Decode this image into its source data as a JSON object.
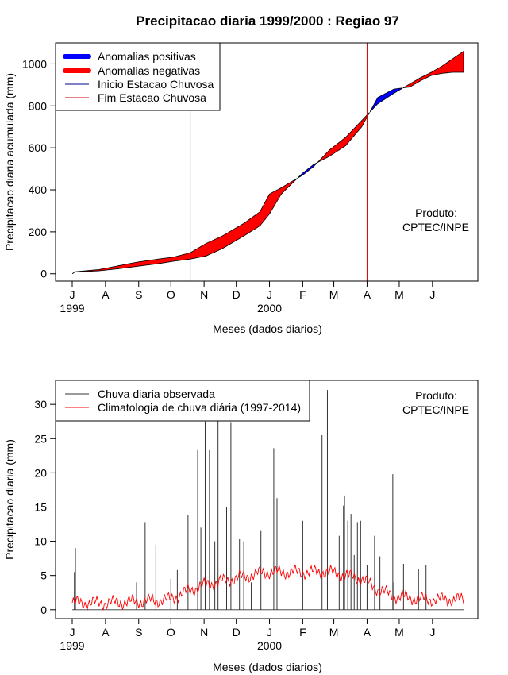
{
  "chart_data": [
    {
      "type": "area",
      "title": "Precipitacao diaria 1999/2000 : Regiao 97",
      "xlabel": "Meses (dados diarios)",
      "ylabel": "Precipitacao diaria acumulada (mm)",
      "ylim": [
        -35,
        1100
      ],
      "yticks": [
        0,
        200,
        400,
        600,
        800,
        1000
      ],
      "month_ticks": [
        "J",
        "A",
        "S",
        "O",
        "N",
        "D",
        "J",
        "F",
        "M",
        "A",
        "M",
        "J"
      ],
      "year_labels": [
        {
          "label": "1999",
          "month_index": 0
        },
        {
          "label": "2000",
          "month_index": 6
        }
      ],
      "observed_accumulated": {
        "day": [
          0,
          3,
          10,
          25,
          45,
          60,
          80,
          95,
          110,
          125,
          140,
          150,
          160,
          175,
          184,
          195,
          205,
          215,
          225,
          240,
          255,
          270,
          285,
          300,
          315,
          325,
          335,
          345,
          355,
          365
        ],
        "mm": [
          0,
          10,
          10,
          14,
          25,
          35,
          48,
          60,
          70,
          85,
          120,
          150,
          180,
          228,
          285,
          380,
          430,
          480,
          520,
          560,
          610,
          700,
          840,
          880,
          890,
          920,
          945,
          955,
          960,
          960
        ]
      },
      "climatology_accumulated": {
        "day": [
          0,
          3,
          10,
          25,
          45,
          60,
          80,
          95,
          110,
          125,
          140,
          150,
          160,
          175,
          184,
          195,
          205,
          215,
          225,
          240,
          255,
          270,
          285,
          300,
          315,
          325,
          335,
          345,
          355,
          365
        ],
        "mm": [
          0,
          10,
          13,
          20,
          40,
          55,
          70,
          80,
          100,
          145,
          180,
          210,
          240,
          295,
          380,
          410,
          440,
          470,
          510,
          590,
          650,
          730,
          810,
          860,
          905,
          935,
          960,
          990,
          1025,
          1060
        ]
      },
      "onset_day": 110,
      "end_day": 275,
      "legend": [
        {
          "label": "Anomalias positivas",
          "color": "#0000ff",
          "style": "thick"
        },
        {
          "label": "Anomalias negativas",
          "color": "#ff0000",
          "style": "thick"
        },
        {
          "label": "Inicio Estacao Chuvosa",
          "color": "#00008b",
          "style": "thin"
        },
        {
          "label": "Fim Estacao Chuvosa",
          "color": "#cc0000",
          "style": "thin"
        }
      ],
      "legend_position": "top-left",
      "annotation": [
        "Produto:",
        "CPTEC/INPE"
      ]
    },
    {
      "type": "bar",
      "xlabel": "Meses (dados diarios)",
      "ylabel": "Precipitacao diaria (mm)",
      "ylim": [
        -1.3,
        33.5
      ],
      "yticks": [
        0,
        5,
        10,
        15,
        20,
        25,
        30
      ],
      "month_ticks": [
        "J",
        "A",
        "S",
        "O",
        "N",
        "D",
        "J",
        "F",
        "M",
        "A",
        "M",
        "J"
      ],
      "year_labels": [
        {
          "label": "1999",
          "month_index": 0
        },
        {
          "label": "2000",
          "month_index": 6
        }
      ],
      "daily_peaks": {
        "day": [
          2,
          3,
          60,
          68,
          78,
          92,
          98,
          108,
          117,
          120,
          124,
          128,
          133,
          136,
          144,
          148,
          156,
          160,
          167,
          176,
          188,
          191,
          215,
          233,
          238,
          249,
          253,
          254,
          257,
          260,
          263,
          266,
          269,
          275,
          282,
          287,
          299,
          300,
          309,
          323,
          330
        ],
        "mm": [
          5.5,
          9.0,
          4.0,
          12.8,
          9.5,
          4.5,
          5.8,
          13.8,
          23.3,
          12.0,
          27.5,
          23.3,
          10.0,
          27.8,
          15.0,
          27.3,
          10.3,
          10.0,
          4.0,
          11.5,
          23.6,
          16.3,
          13.0,
          25.5,
          32.1,
          10.8,
          15.2,
          16.7,
          13.0,
          14.0,
          8.0,
          12.8,
          13.0,
          6.5,
          10.8,
          7.8,
          19.8,
          4.0,
          6.7,
          6.0,
          6.5
        ]
      },
      "climatology_daily": {
        "day": [
          0,
          30,
          60,
          90,
          105,
          120,
          150,
          180,
          210,
          240,
          270,
          285,
          300,
          330,
          365
        ],
        "mm": [
          1.0,
          1.0,
          1.2,
          1.5,
          2.5,
          3.5,
          4.5,
          5.5,
          5.5,
          5.5,
          4.5,
          3.0,
          2.0,
          1.5,
          1.5
        ]
      },
      "legend": [
        {
          "label": "Chuva diaria observada",
          "color": "#333333"
        },
        {
          "label": "Climatologia de chuva diária (1997-2014)",
          "color": "#ff0000"
        }
      ],
      "legend_position": "top-left",
      "annotation": [
        "Produto:",
        "CPTEC/INPE"
      ]
    }
  ]
}
